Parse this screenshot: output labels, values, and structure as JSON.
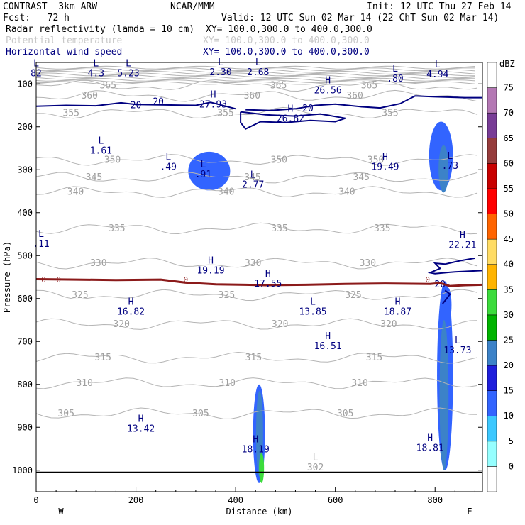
{
  "header": {
    "model": "CONTRAST  3km ARW",
    "center": "NCAR/MMM",
    "init": "Init: 12 UTC Thu 27 Feb 14",
    "fcst": "Fcst:   72 h",
    "valid": "Valid: 12 UTC Sun 02 Mar 14 (22 ChT Sun 02 Mar 14)",
    "fields": [
      {
        "name": "Radar reflectivity (lamda = 10 cm)",
        "xy": "XY= 100.0,300.0 to 400.0,300.0",
        "color": "#000000"
      },
      {
        "name": "Potential temperature",
        "xy": "XY= 100.0,300.0 to 400.0,300.0",
        "color": "#c8c8c8"
      },
      {
        "name": "Horizontal wind speed",
        "xy": "XY= 100.0,300.0 to 400.0,300.0",
        "color": "#000080"
      }
    ]
  },
  "chart_data": {
    "type": "contour",
    "xlabel": "Distance (km)",
    "ylabel": "Pressure (hPa)",
    "xlim": [
      0,
      895
    ],
    "ylim": [
      1050,
      50
    ],
    "x_ticks": [
      0,
      200,
      400,
      600,
      800
    ],
    "y_ticks": [
      100,
      200,
      300,
      400,
      500,
      600,
      700,
      800,
      900,
      1000
    ],
    "x_end_labels": {
      "left": "W",
      "right": "E"
    },
    "colorbar": {
      "unit": "dBZ",
      "levels": [
        0,
        5,
        10,
        15,
        20,
        25,
        30,
        35,
        40,
        45,
        50,
        55,
        60,
        65,
        70,
        75
      ],
      "colors": [
        "#ffffff",
        "#96ffff",
        "#3cc8ff",
        "#3264ff",
        "#1e1edc",
        "#3c82c8",
        "#00b400",
        "#3cdc3c",
        "#ffb400",
        "#ffdc64",
        "#ff6400",
        "#ff0000",
        "#c80000",
        "#963c3c",
        "#783c96",
        "#b478b4",
        "#ffffff"
      ]
    },
    "theta_levels": [
      {
        "value": 305,
        "p": 868
      },
      {
        "value": 310,
        "p": 797
      },
      {
        "value": 315,
        "p": 738
      },
      {
        "value": 320,
        "p": 660
      },
      {
        "value": 325,
        "p": 592
      },
      {
        "value": 330,
        "p": 518
      },
      {
        "value": 335,
        "p": 437
      },
      {
        "value": 340,
        "p": 352
      },
      {
        "value": 345,
        "p": 318
      },
      {
        "value": 350,
        "p": 277
      },
      {
        "value": 355,
        "p": 168
      },
      {
        "value": 360,
        "p": 128
      },
      {
        "value": 365,
        "p": 104
      }
    ],
    "isotherm_0": [
      [
        0,
        555
      ],
      [
        80,
        556
      ],
      [
        160,
        557
      ],
      [
        250,
        556
      ],
      [
        300,
        563
      ],
      [
        360,
        567
      ],
      [
        420,
        568
      ],
      [
        460,
        569
      ],
      [
        540,
        568
      ],
      [
        620,
        566
      ],
      [
        700,
        565
      ],
      [
        790,
        566
      ],
      [
        810,
        564
      ],
      [
        830,
        571
      ],
      [
        860,
        569
      ],
      [
        895,
        568
      ]
    ],
    "wind_20_contours": [
      [
        [
          0,
          152
        ],
        [
          60,
          150
        ],
        [
          120,
          151
        ],
        [
          170,
          144
        ],
        [
          200,
          148
        ],
        [
          260,
          149
        ],
        [
          320,
          150
        ],
        [
          350,
          143
        ],
        [
          380,
          152
        ],
        [
          400,
          158
        ]
      ],
      [
        [
          420,
          160
        ],
        [
          470,
          162
        ],
        [
          520,
          158
        ],
        [
          560,
          150
        ],
        [
          600,
          147
        ],
        [
          650,
          153
        ],
        [
          690,
          156
        ],
        [
          730,
          146
        ],
        [
          760,
          128
        ],
        [
          800,
          130
        ],
        [
          860,
          132
        ],
        [
          895,
          132
        ]
      ],
      [
        [
          410,
          165
        ],
        [
          460,
          172
        ],
        [
          520,
          175
        ],
        [
          570,
          170
        ],
        [
          620,
          180
        ],
        [
          600,
          188
        ],
        [
          550,
          185
        ],
        [
          500,
          190
        ],
        [
          450,
          188
        ],
        [
          420,
          205
        ],
        [
          410,
          190
        ],
        [
          410,
          165
        ]
      ],
      [
        [
          880,
          506
        ],
        [
          850,
          512
        ],
        [
          820,
          520
        ],
        [
          800,
          518
        ],
        [
          810,
          530
        ],
        [
          790,
          540
        ],
        [
          800,
          542
        ],
        [
          840,
          538
        ],
        [
          895,
          535
        ]
      ],
      [
        [
          820,
          581
        ],
        [
          830,
          590
        ],
        [
          820,
          605
        ],
        [
          815,
          612
        ]
      ]
    ],
    "radar_echoes": [
      {
        "x_center": 347,
        "p_center": 303,
        "half_width_km": 42,
        "half_height_hpa": 45,
        "dbz": 10
      },
      {
        "x_center": 812,
        "p_center": 268,
        "half_width_km": 24,
        "half_height_hpa": 80,
        "dbz": 10
      },
      {
        "x_center": 817,
        "p_center": 298,
        "half_width_km": 10,
        "half_height_hpa": 55,
        "dbz": 20
      },
      {
        "x_center": 447,
        "p_center": 915,
        "half_width_km": 12,
        "half_height_hpa": 115,
        "dbz": 10
      },
      {
        "x_center": 448,
        "p_center": 915,
        "half_width_km": 7,
        "half_height_hpa": 100,
        "dbz": 20
      },
      {
        "x_center": 452,
        "p_center": 995,
        "half_width_km": 5,
        "half_height_hpa": 35,
        "dbz": 30
      },
      {
        "x_center": 820,
        "p_center": 780,
        "half_width_km": 16,
        "half_height_hpa": 220,
        "dbz": 10
      },
      {
        "x_center": 818,
        "p_center": 825,
        "half_width_km": 9,
        "half_height_hpa": 175,
        "dbz": 20
      },
      {
        "x_center": 826,
        "p_center": 615,
        "half_width_km": 7,
        "half_height_hpa": 40,
        "dbz": 10
      }
    ],
    "extrema": [
      {
        "t": "L",
        "v": "82",
        "x": 0,
        "p": 82
      },
      {
        "t": "L",
        "v": "4.3",
        "x": 120,
        "p": 82
      },
      {
        "t": "L",
        "v": "5.23",
        "x": 185,
        "p": 82
      },
      {
        "t": "L",
        "v": "2.30",
        "x": 370,
        "p": 80
      },
      {
        "t": "L",
        "v": "2.68",
        "x": 445,
        "p": 80
      },
      {
        "t": "L",
        "v": ".80",
        "x": 720,
        "p": 95
      },
      {
        "t": "L",
        "v": "4.94",
        "x": 805,
        "p": 85
      },
      {
        "t": "H",
        "v": "26.56",
        "x": 585,
        "p": 122
      },
      {
        "t": "H",
        "v": "27.93",
        "x": 355,
        "p": 155
      },
      {
        "t": "H",
        "v": "26.82",
        "x": 510,
        "p": 188
      },
      {
        "t": "L",
        "v": "1.61",
        "x": 130,
        "p": 262
      },
      {
        "t": "L",
        "v": ".49",
        "x": 265,
        "p": 300
      },
      {
        "t": "L",
        "v": ".91",
        "x": 335,
        "p": 318
      },
      {
        "t": "L",
        "v": "2.77",
        "x": 435,
        "p": 342
      },
      {
        "t": "H",
        "v": "19.49",
        "x": 700,
        "p": 300
      },
      {
        "t": "L",
        "v": ".73",
        "x": 830,
        "p": 298
      },
      {
        "t": "L",
        "v": ".11",
        "x": 10,
        "p": 480
      },
      {
        "t": "H",
        "v": "22.21",
        "x": 855,
        "p": 482
      },
      {
        "t": "H",
        "v": "19.19",
        "x": 350,
        "p": 542
      },
      {
        "t": "H",
        "v": "17.55",
        "x": 465,
        "p": 572
      },
      {
        "t": "H",
        "v": "16.82",
        "x": 190,
        "p": 638
      },
      {
        "t": "L",
        "v": "13.85",
        "x": 555,
        "p": 638
      },
      {
        "t": "H",
        "v": "18.87",
        "x": 725,
        "p": 638
      },
      {
        "t": "H",
        "v": "16.51",
        "x": 585,
        "p": 718
      },
      {
        "t": "L",
        "v": "13.73",
        "x": 845,
        "p": 728
      },
      {
        "t": "H",
        "v": "13.42",
        "x": 210,
        "p": 910
      },
      {
        "t": "H",
        "v": "18.19",
        "x": 440,
        "p": 958
      },
      {
        "t": "H",
        "v": "18.81",
        "x": 790,
        "p": 955
      },
      {
        "t": "L",
        "v": "302",
        "x": 560,
        "p": 1000
      }
    ]
  }
}
